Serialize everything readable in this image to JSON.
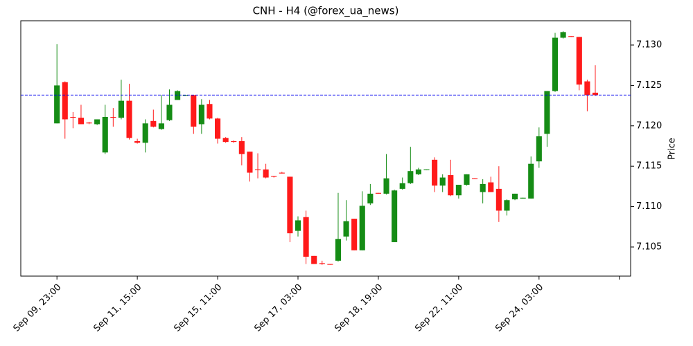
{
  "chart_data": {
    "type": "candlestick",
    "title": "CNH - H4 (@forex_ua_news)",
    "ylabel": "Price",
    "x": [
      0,
      1,
      2,
      3,
      4,
      5,
      6,
      7,
      8,
      9,
      10,
      11,
      12,
      13,
      14,
      15,
      16,
      17,
      18,
      19,
      20,
      21,
      22,
      23,
      24,
      25,
      26,
      27,
      28,
      29,
      30,
      31,
      32,
      33,
      34,
      35,
      36,
      37,
      38,
      39,
      40,
      41,
      42,
      43,
      44,
      45,
      46,
      47,
      48,
      49,
      50,
      51,
      52,
      53,
      54,
      55,
      56,
      57,
      58,
      59,
      60,
      61,
      62,
      63,
      64,
      65,
      66,
      67
    ],
    "open": [
      7.1203,
      7.1254,
      7.1211,
      7.121,
      7.1204,
      7.1202,
      7.1167,
      7.1211,
      7.121,
      7.1231,
      7.1181,
      7.1179,
      7.1206,
      7.1196,
      7.1207,
      7.1232,
      7.1237,
      7.1238,
      7.1202,
      7.1227,
      7.1209,
      7.1185,
      7.1181,
      7.1181,
      7.1168,
      7.1146,
      7.1146,
      7.1138,
      7.1142,
      7.1137,
      7.107,
      7.1087,
      7.1039,
      7.103,
      7.1029,
      7.1033,
      7.1063,
      7.1085,
      7.1046,
      7.1104,
      7.1117,
      7.1116,
      7.1056,
      7.1122,
      7.1129,
      7.114,
      7.1145,
      7.1158,
      7.1126,
      7.1139,
      7.1114,
      7.1127,
      7.1135,
      7.1118,
      7.113,
      7.1122,
      7.1095,
      7.1109,
      7.111,
      7.111,
      7.1156,
      7.119,
      7.1243,
      7.1309,
      7.1311,
      7.131,
      7.1255,
      7.1241
    ],
    "high": [
      7.1301,
      7.1255,
      7.1217,
      7.1226,
      7.1205,
      7.1208,
      7.1226,
      7.1222,
      7.1257,
      7.1252,
      7.1184,
      7.1208,
      7.122,
      7.1238,
      7.1245,
      7.1244,
      7.1238,
      7.1238,
      7.1233,
      7.1232,
      7.121,
      7.1186,
      7.1182,
      7.1186,
      7.1168,
      7.1166,
      7.1153,
      7.1138,
      7.1143,
      7.1137,
      7.1088,
      7.1095,
      7.1039,
      7.1033,
      7.1029,
      7.1117,
      7.1108,
      7.1085,
      7.1119,
      7.1128,
      7.1117,
      7.1165,
      7.1121,
      7.1136,
      7.1174,
      7.1148,
      7.1146,
      7.1161,
      7.114,
      7.1158,
      7.1127,
      7.114,
      7.1135,
      7.1134,
      7.1137,
      7.115,
      7.1109,
      7.1116,
      7.1111,
      7.1162,
      7.1198,
      7.1243,
      7.1315,
      7.1317,
      7.1311,
      7.131,
      7.1257,
      7.1275
    ],
    "low": [
      7.1203,
      7.1184,
      7.1197,
      7.1202,
      7.1202,
      7.1201,
      7.1165,
      7.1199,
      7.1208,
      7.1183,
      7.1178,
      7.1167,
      7.1198,
      7.1195,
      7.1206,
      7.1232,
      7.1237,
      7.119,
      7.119,
      7.1208,
      7.1178,
      7.1179,
      7.1179,
      7.1151,
      7.1131,
      7.1135,
      7.1135,
      7.1136,
      7.1141,
      7.1056,
      7.1063,
      7.1029,
      7.1029,
      7.1028,
      7.1028,
      7.1032,
      7.1058,
      7.1046,
      7.1046,
      7.1102,
      7.1116,
      7.1115,
      7.1056,
      7.1121,
      7.1128,
      7.1139,
      7.1145,
      7.1118,
      7.1118,
      7.1113,
      7.111,
      7.1126,
      7.1134,
      7.1104,
      7.1118,
      7.1081,
      7.1089,
      7.1108,
      7.111,
      7.111,
      7.1148,
      7.1174,
      7.1242,
      7.1308,
      7.131,
      7.1244,
      7.1218,
      7.1237
    ],
    "close": [
      7.125,
      7.1208,
      7.121,
      7.1202,
      7.1203,
      7.1208,
      7.1211,
      7.121,
      7.1231,
      7.1185,
      7.1179,
      7.1203,
      7.1199,
      7.1203,
      7.1226,
      7.1243,
      7.1238,
      7.1199,
      7.1226,
      7.1209,
      7.1184,
      7.118,
      7.118,
      7.1165,
      7.1142,
      7.1145,
      7.1136,
      7.1137,
      7.1141,
      7.1067,
      7.1083,
      7.1038,
      7.1029,
      7.1029,
      7.1028,
      7.106,
      7.1082,
      7.1046,
      7.1101,
      7.1116,
      7.1116,
      7.1135,
      7.112,
      7.1129,
      7.1144,
      7.1146,
      7.1146,
      7.1126,
      7.1136,
      7.1114,
      7.1127,
      7.114,
      7.1134,
      7.1128,
      7.1118,
      7.1095,
      7.1108,
      7.1116,
      7.1111,
      7.1153,
      7.1187,
      7.1243,
      7.1309,
      7.1316,
      7.131,
      7.1251,
      7.1238,
      7.1238
    ],
    "up_color": "#158c15",
    "down_color": "#ff1a1a",
    "hline": {
      "value": 7.1238,
      "color": "#0000ee"
    },
    "xlim": [
      -4.5,
      71.4
    ],
    "xticks": [
      {
        "value": 0,
        "label": "Sep 09, 23:00"
      },
      {
        "value": 10,
        "label": "Sep 11, 15:00"
      },
      {
        "value": 20,
        "label": "Sep 15, 11:00"
      },
      {
        "value": 30,
        "label": "Sep 17, 03:00"
      },
      {
        "value": 40,
        "label": "Sep 18, 19:00"
      },
      {
        "value": 50,
        "label": "Sep 22, 11:00"
      },
      {
        "value": 60,
        "label": "Sep 24, 03:00"
      },
      {
        "value": 70,
        "label": null
      }
    ],
    "ylim": [
      7.1014,
      7.133
    ],
    "yticks": [
      7.105,
      {
        "value": 7.11,
        "label": "7.110"
      },
      7.115,
      {
        "value": 7.12,
        "label": "7.120"
      },
      7.125,
      {
        "value": 7.13,
        "label": "7.130"
      }
    ]
  }
}
